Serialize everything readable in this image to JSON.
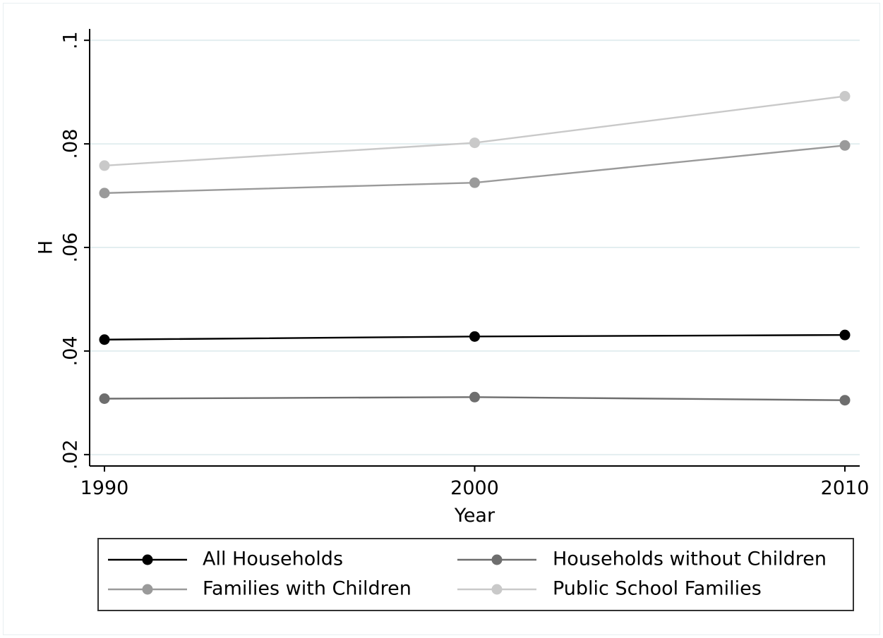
{
  "chart_data": {
    "type": "line",
    "title": "",
    "xlabel": "Year",
    "ylabel": "H",
    "x": [
      1990,
      2000,
      2010
    ],
    "x_tick_labels": [
      "1990",
      "2000",
      "2010"
    ],
    "xlim": [
      1989.6,
      2010.4
    ],
    "ylim": [
      0.0178,
      0.1022
    ],
    "y_ticks": [
      0.02,
      0.04,
      0.06,
      0.08,
      0.1
    ],
    "y_tick_labels": [
      ".02",
      ".04",
      ".06",
      ".08",
      ".1"
    ],
    "grid": true,
    "legend_position": "bottom",
    "series": [
      {
        "name": "All Households",
        "color": "#000000",
        "values": [
          0.0422,
          0.0428,
          0.0431
        ]
      },
      {
        "name": "Households without Children",
        "color": "#6e6e6e",
        "values": [
          0.0308,
          0.0311,
          0.0305
        ]
      },
      {
        "name": "Families with Children",
        "color": "#9a9a9a",
        "values": [
          0.0705,
          0.0725,
          0.0797
        ]
      },
      {
        "name": "Public School Families",
        "color": "#c9c9c9",
        "values": [
          0.0758,
          0.0802,
          0.0892
        ]
      }
    ]
  },
  "colors": {
    "background": "#ffffff",
    "gridline": "#e3eef0",
    "axis": "#000000"
  }
}
